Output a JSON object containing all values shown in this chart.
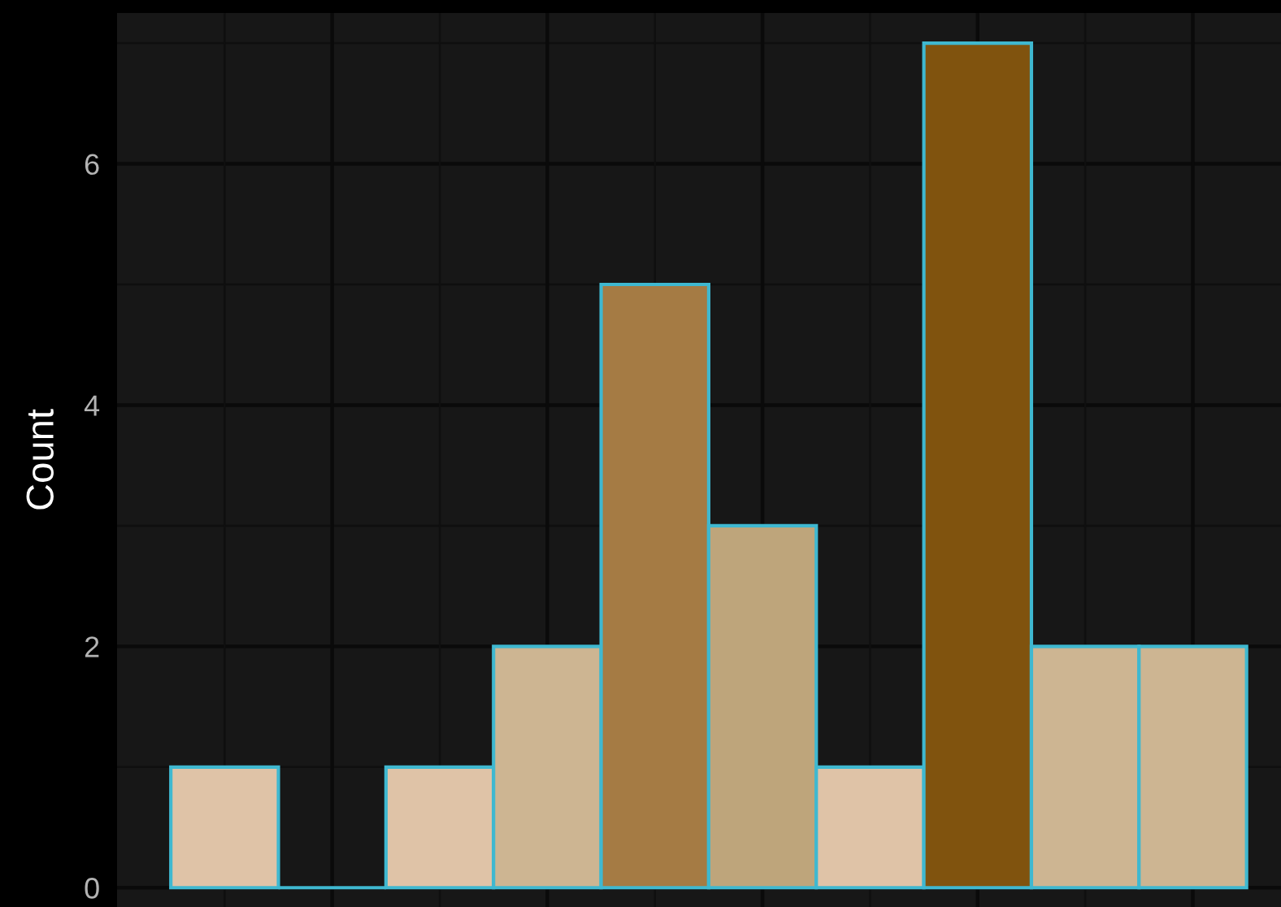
{
  "chart_data": {
    "type": "bar",
    "ylabel": "Count",
    "categories": [
      null,
      null,
      null,
      null,
      null,
      null,
      null,
      null,
      null,
      null
    ],
    "values": [
      1,
      0,
      1,
      2,
      5,
      3,
      1,
      7,
      2,
      2
    ],
    "colors": [
      "#dfc3a7",
      "#3fb8d0",
      "#dfc3a7",
      "#cdb592",
      "#a57b44",
      "#bea57b",
      "#dfc3a7",
      "#80530e",
      "#cdb592",
      "#cdb592"
    ],
    "ylim": [
      -0.16,
      7.25
    ],
    "yticks": [
      0,
      2,
      4,
      6
    ],
    "grid": true,
    "tick_labels": "y"
  }
}
